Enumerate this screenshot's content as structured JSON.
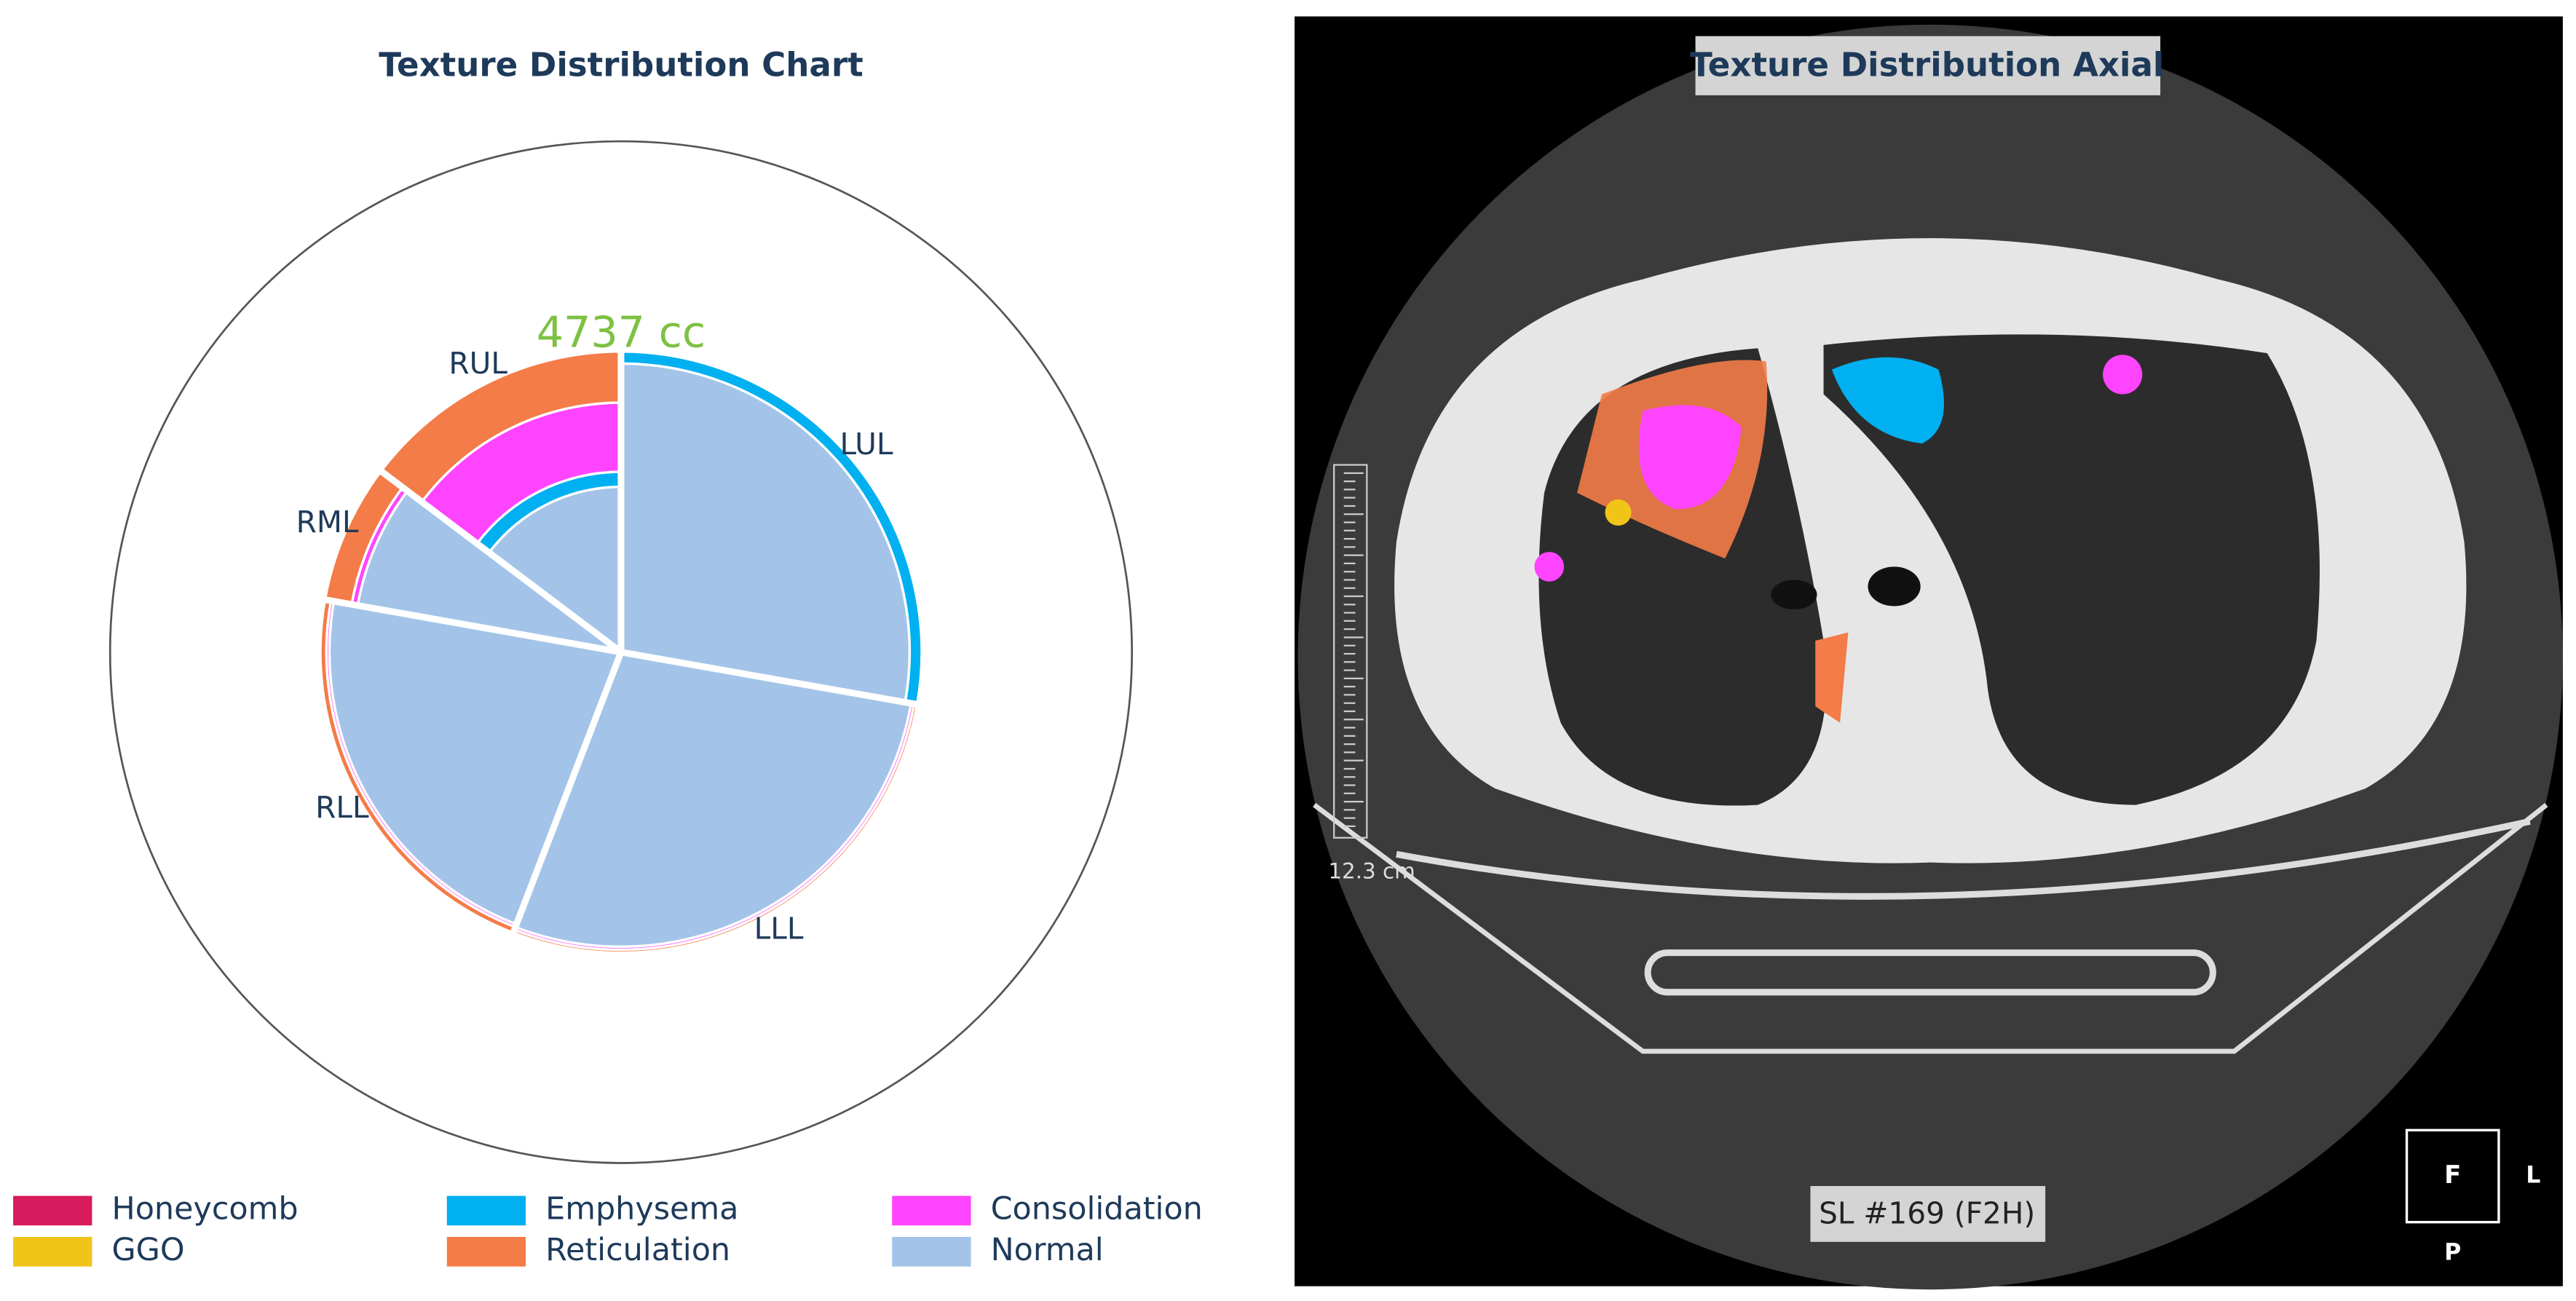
{
  "chart_data": {
    "type": "pie",
    "title": "Texture Distribution Chart",
    "total": 4737,
    "total_label": "4737 cc",
    "categories": [
      "LUL",
      "LLL",
      "RLL",
      "RML",
      "RUL"
    ],
    "lobe_volumes": [
      1316,
      1329,
      1040,
      355,
      697
    ],
    "rlim": [
      0,
      100
    ],
    "series": [
      {
        "name": "Normal",
        "color": "#a3c4e8",
        "values": [
          96,
          98,
          97,
          89,
          55
        ]
      },
      {
        "name": "Emphysema",
        "color": "#00b0f0",
        "values": [
          4,
          0,
          0,
          0,
          5
        ]
      },
      {
        "name": "GGO",
        "color": "#f0c419",
        "values": [
          0,
          0,
          0,
          0,
          0
        ]
      },
      {
        "name": "Consolidation",
        "color": "#ff44ff",
        "values": [
          0,
          1,
          1,
          2,
          23
        ]
      },
      {
        "name": "Reticulation",
        "color": "#f47c48",
        "values": [
          0,
          1,
          2,
          9,
          17
        ]
      },
      {
        "name": "Honeycomb",
        "color": "#d81b5c",
        "values": [
          0,
          0,
          0,
          0,
          0
        ]
      }
    ],
    "legend_order": [
      5,
      2,
      1,
      4,
      3,
      0
    ]
  },
  "viewer": {
    "title": "Texture Distribution Axial",
    "scale_label": "12.3 cm",
    "slice_label": "SL #169 (F2H)",
    "orientation": {
      "center": "F",
      "right": "L",
      "bottom": "P"
    }
  }
}
